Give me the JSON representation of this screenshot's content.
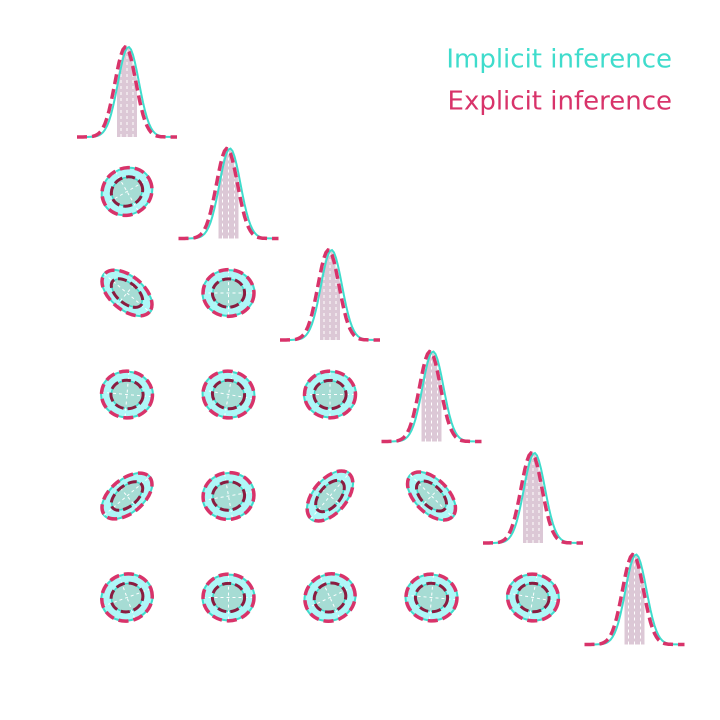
{
  "chart_data": {
    "type": "corner",
    "legend": "upper right",
    "series": [
      {
        "name": "Implicit inference",
        "color": "#3fdccc"
      },
      {
        "name": "Explicit inference",
        "color": "#d8336a"
      }
    ]
  }
}
